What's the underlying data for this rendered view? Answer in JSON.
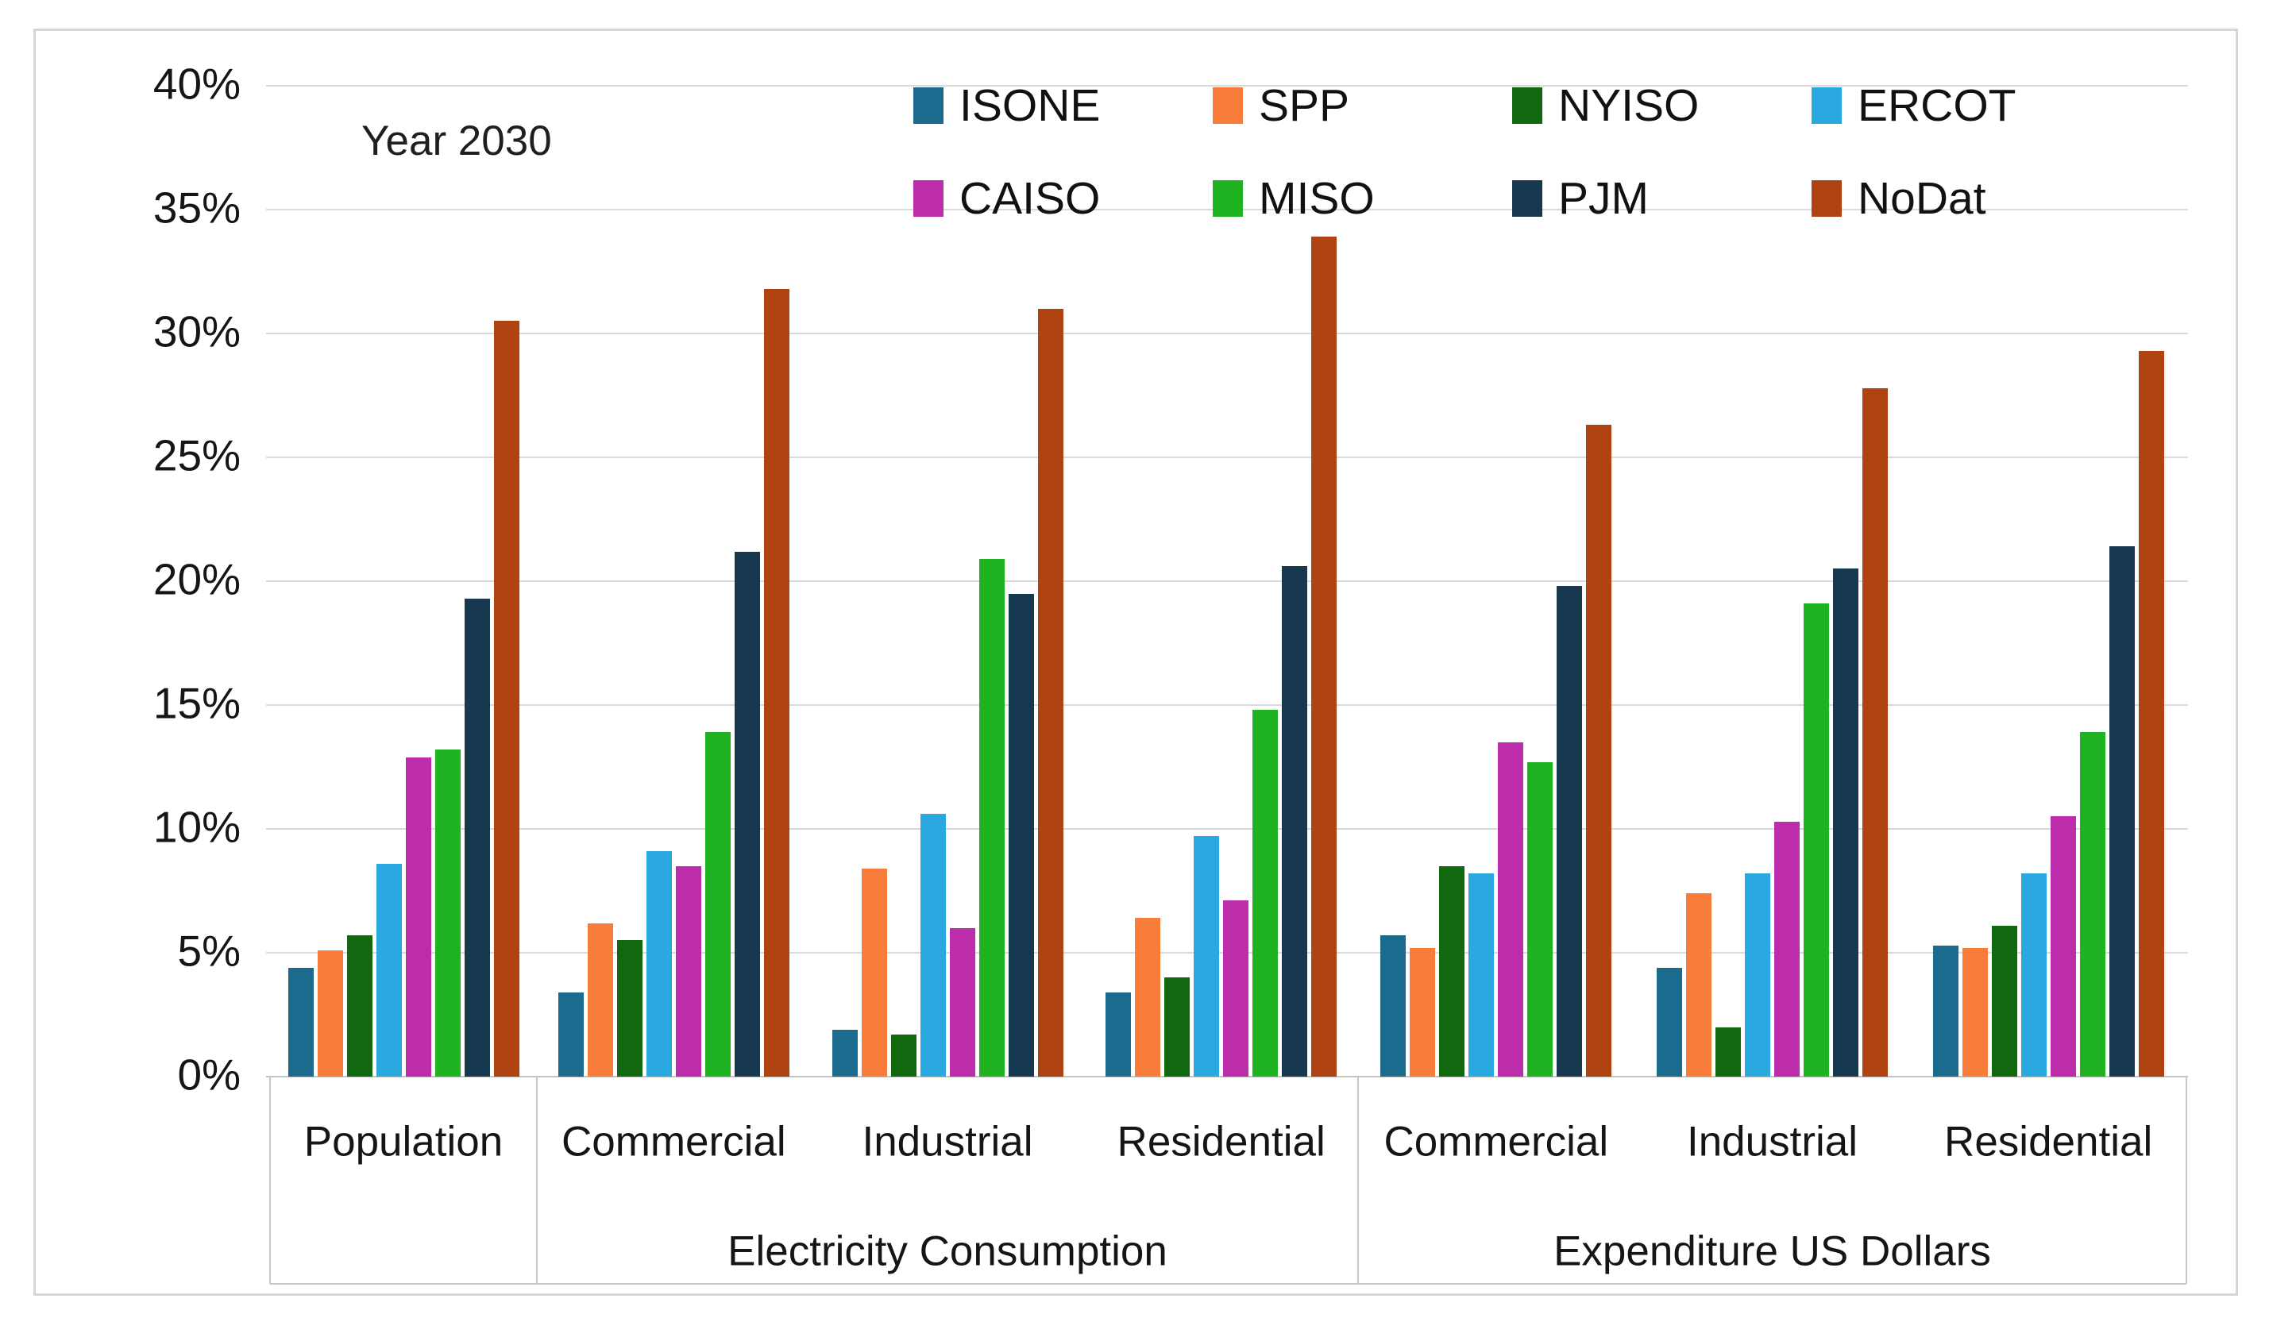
{
  "chart_data": {
    "type": "bar",
    "title": "Year 2030",
    "y_axis": {
      "unit": "%",
      "min": 0,
      "max": 40,
      "step": 5,
      "tick_labels": [
        "0%",
        "5%",
        "10%",
        "15%",
        "20%",
        "25%",
        "30%",
        "35%",
        "40%"
      ]
    },
    "x_axis": {
      "categories": [
        "Population",
        "Commercial",
        "Industrial",
        "Residential",
        "Commercial",
        "Industrial",
        "Residential"
      ],
      "sections": [
        {
          "label": "",
          "category_indexes": [
            0
          ]
        },
        {
          "label": "Electricity Consumption",
          "category_indexes": [
            1,
            2,
            3
          ]
        },
        {
          "label": "Expenditure US Dollars",
          "category_indexes": [
            4,
            5,
            6
          ]
        }
      ]
    },
    "legend": {
      "position": "top-inside",
      "rows": [
        [
          "ISONE",
          "SPP",
          "NYISO",
          "ERCOT"
        ],
        [
          "CAISO",
          "MISO",
          "PJM",
          "NoDat"
        ]
      ]
    },
    "grid": true,
    "ylim": [
      0,
      40
    ],
    "series": [
      {
        "name": "ISONE",
        "color": "#1A6B8E",
        "values": [
          4.4,
          3.4,
          1.9,
          3.4,
          5.7,
          4.4,
          5.3
        ]
      },
      {
        "name": "SPP",
        "color": "#F87C3A",
        "values": [
          5.1,
          6.2,
          8.4,
          6.4,
          5.2,
          7.4,
          5.2
        ]
      },
      {
        "name": "NYISO",
        "color": "#11680F",
        "values": [
          5.7,
          5.5,
          1.7,
          4.0,
          8.5,
          2.0,
          6.1
        ]
      },
      {
        "name": "ERCOT",
        "color": "#2AA8E0",
        "values": [
          8.6,
          9.1,
          10.6,
          9.7,
          8.2,
          8.2,
          8.2
        ]
      },
      {
        "name": "CAISO",
        "color": "#BC2CAB",
        "values": [
          12.9,
          8.5,
          6.0,
          7.1,
          13.5,
          10.3,
          10.5
        ]
      },
      {
        "name": "MISO",
        "color": "#1FB221",
        "values": [
          13.2,
          13.9,
          20.9,
          14.8,
          12.7,
          19.1,
          13.9
        ]
      },
      {
        "name": "PJM",
        "color": "#16394F",
        "values": [
          19.3,
          21.2,
          19.5,
          20.6,
          19.8,
          20.5,
          21.4
        ]
      },
      {
        "name": "NoDat",
        "color": "#B04312",
        "values": [
          30.5,
          31.8,
          31.0,
          33.9,
          26.3,
          27.8,
          29.3
        ]
      }
    ]
  }
}
